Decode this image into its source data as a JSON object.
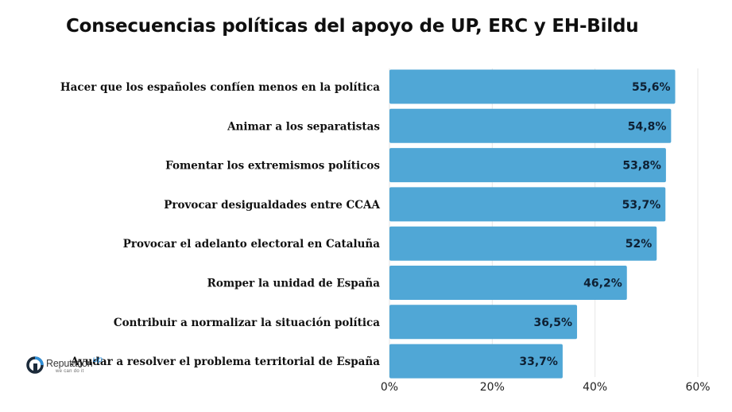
{
  "chart_data": {
    "type": "bar",
    "orientation": "horizontal",
    "title": "Consecuencias políticas del apoyo de UP, ERC y EH-Bildu",
    "categories": [
      "Hacer que los españoles confíen menos en la política",
      "Animar a los separatistas",
      "Fomentar los extremismos políticos",
      "Provocar desigualdades entre CCAA",
      "Provocar el adelanto electoral en Cataluña",
      "Romper la unidad de España",
      "Contribuir a normalizar la situación política",
      "Ayudar a resolver el problema territorial de España"
    ],
    "values": [
      55.6,
      54.8,
      53.8,
      53.7,
      52,
      46.2,
      36.5,
      33.7
    ],
    "value_labels": [
      "55,6%",
      "54,8%",
      "53,8%",
      "53,7%",
      "52%",
      "46,2%",
      "36,5%",
      "33,7%"
    ],
    "xlim": [
      0,
      60
    ],
    "xticks": [
      0,
      20,
      40,
      60
    ],
    "xtick_labels": [
      "0%",
      "20%",
      "40%",
      "60%"
    ],
    "grid": true,
    "bar_color": "#50a7d6"
  },
  "logo": {
    "name": "Reputation",
    "name_suffix": "up",
    "tagline": "we can do it"
  }
}
